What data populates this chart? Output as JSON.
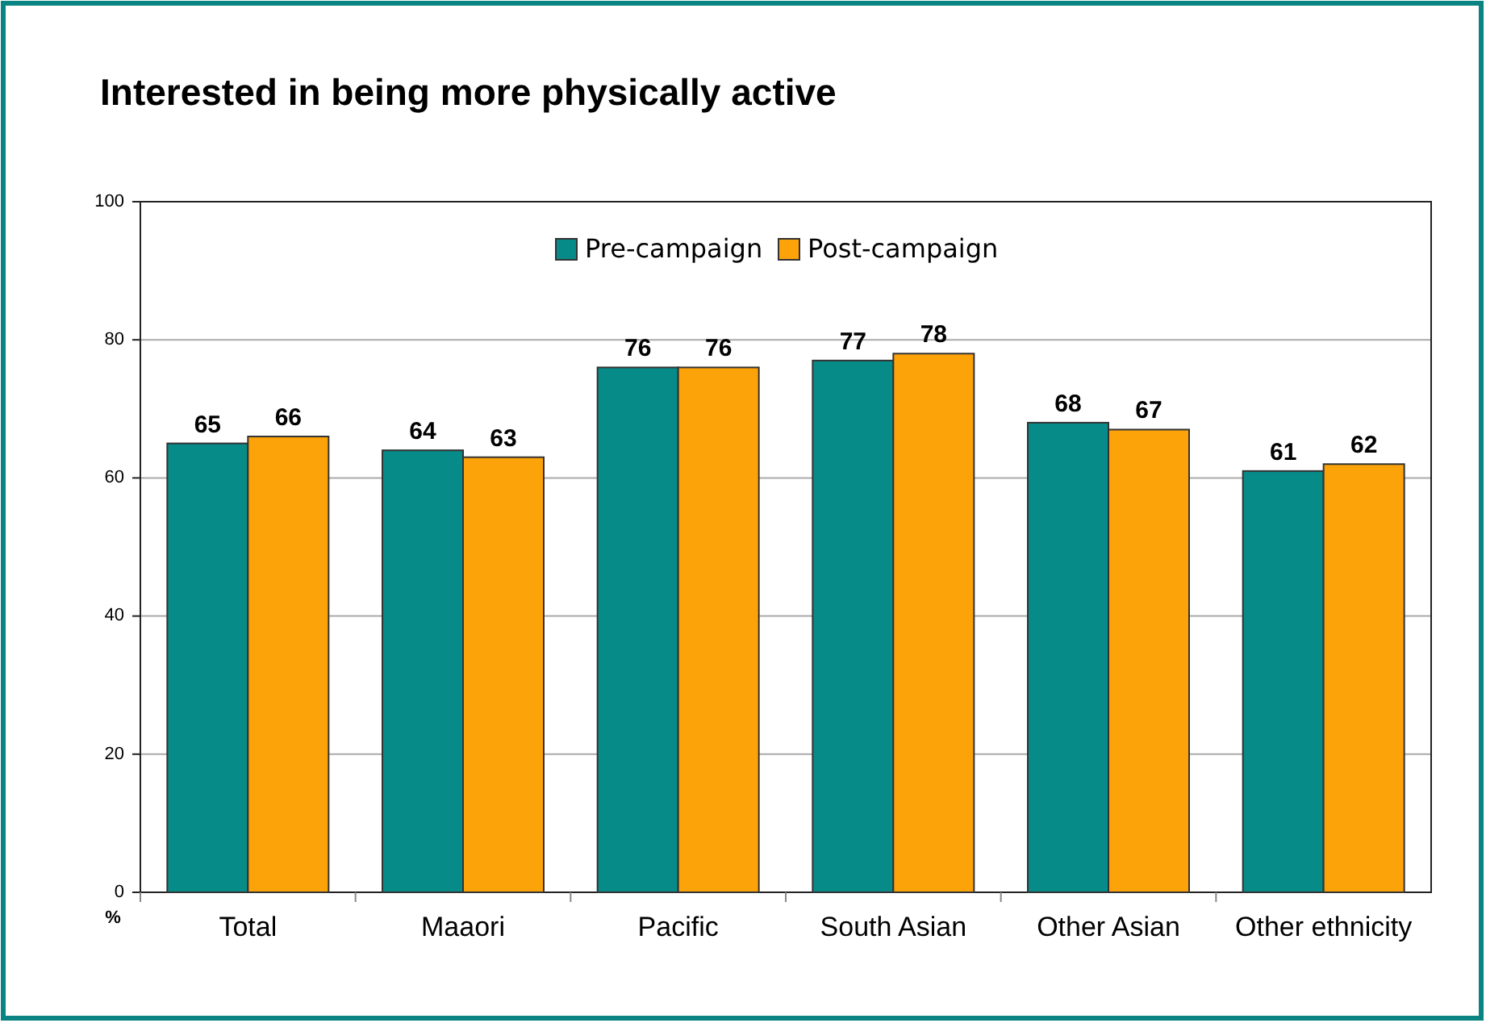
{
  "chart_data": {
    "type": "bar",
    "title": "Interested in being more physically active",
    "ylabel": "%",
    "categories": [
      "Total",
      "Maaori",
      "Pacific",
      "South Asian",
      "Other Asian",
      "Other ethnicity"
    ],
    "series": [
      {
        "name": "Pre-campaign",
        "color": "#078b89",
        "values": [
          65,
          64,
          76,
          77,
          68,
          61
        ]
      },
      {
        "name": "Post-campaign",
        "color": "#fca30a",
        "values": [
          66,
          63,
          76,
          78,
          67,
          62
        ]
      }
    ],
    "ylim": [
      0,
      100
    ],
    "yticks": [
      0,
      20,
      40,
      60,
      80,
      100
    ],
    "grid": "y",
    "legend": "top",
    "data_labels": true
  }
}
